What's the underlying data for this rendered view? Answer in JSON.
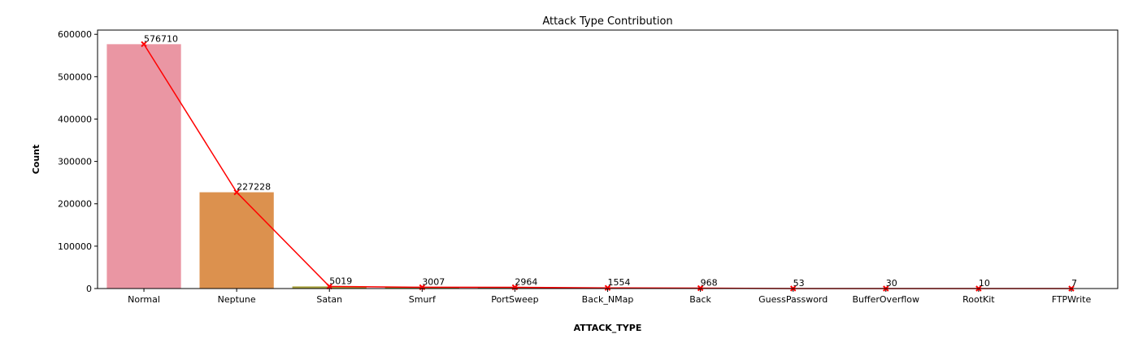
{
  "chart_data": {
    "type": "bar",
    "title": "Attack Type Contribution",
    "xlabel": "ATTACK_TYPE",
    "ylabel": "Count",
    "categories": [
      "Normal",
      "Neptune",
      "Satan",
      "Smurf",
      "PortSweep",
      "Back_NMap",
      "Back",
      "GuessPassword",
      "BufferOverflow",
      "RootKit",
      "FTPWrite"
    ],
    "values": [
      576710,
      227228,
      5019,
      3007,
      2964,
      1554,
      968,
      53,
      30,
      10,
      7
    ],
    "data_labels": [
      "576710",
      "227228",
      "5019",
      "3007",
      "2964",
      "1554",
      "968",
      "53",
      "30",
      "10",
      "7"
    ],
    "bar_colors": [
      "#ea96a3",
      "#dc914e",
      "#a9a23d",
      "#7fae3b",
      "#3db578",
      "#3fb3a4",
      "#3fadc9",
      "#7ca7e8",
      "#c797e8",
      "#e58fd8",
      "#ec91b6"
    ],
    "overlay_line": {
      "color": "#ff0000",
      "marker": "x"
    },
    "ylim": [
      0,
      610000
    ],
    "yticks": [
      0,
      100000,
      200000,
      300000,
      400000,
      500000,
      600000
    ],
    "ytick_labels": [
      "0",
      "100000",
      "200000",
      "300000",
      "400000",
      "500000",
      "600000"
    ],
    "grid": false,
    "legend": "none"
  }
}
